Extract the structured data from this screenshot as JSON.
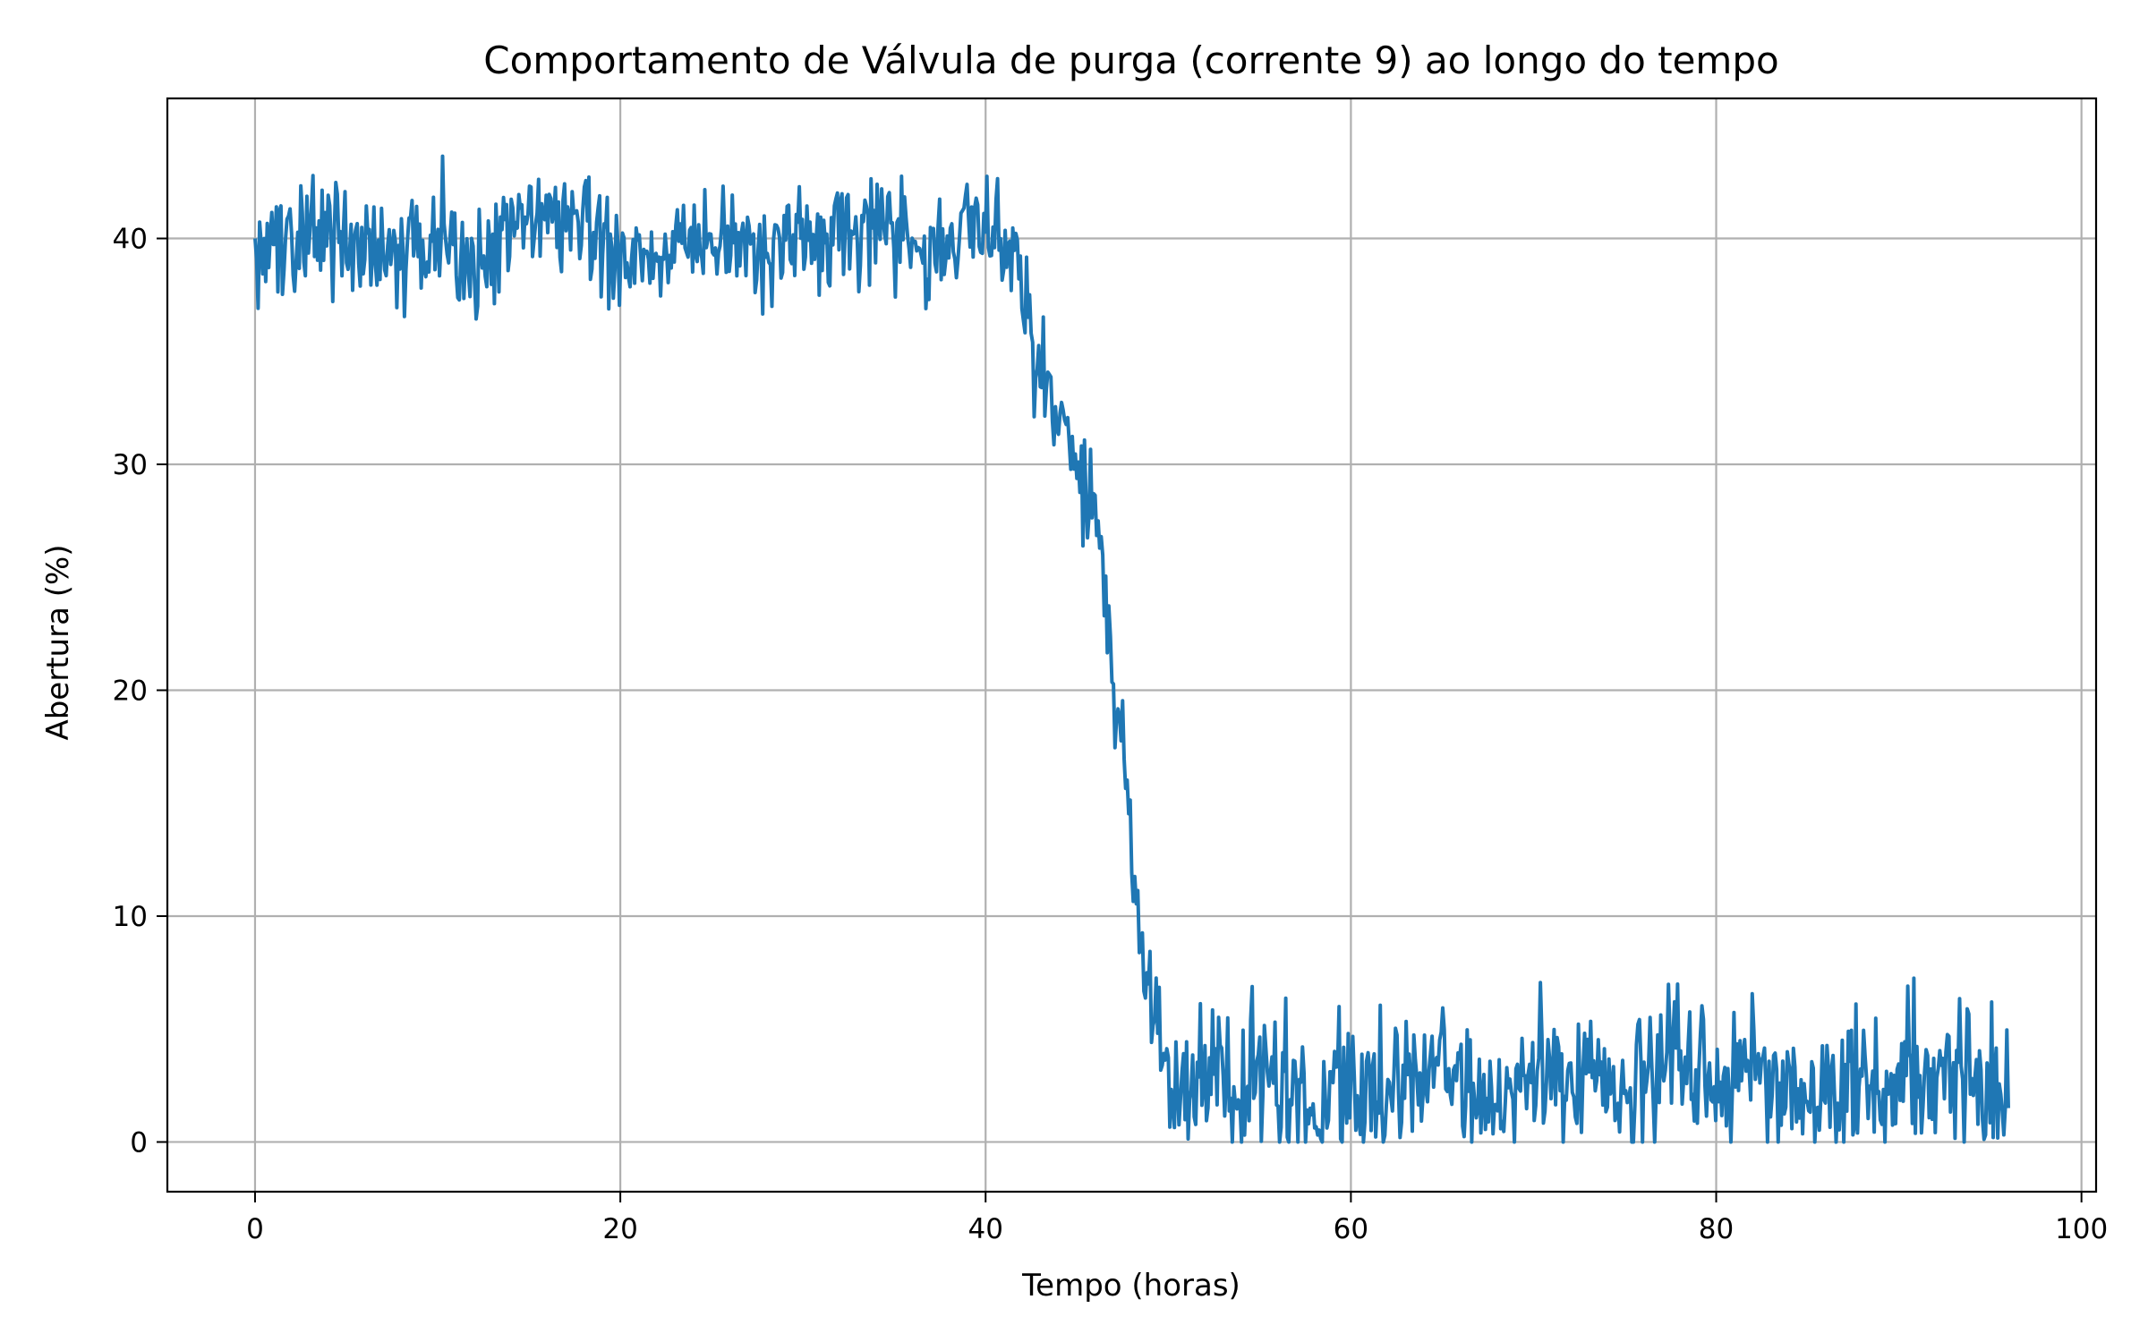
{
  "chart_data": {
    "type": "line",
    "title": "Comportamento de Válvula de purga (corrente 9) ao longo do tempo",
    "xlabel": "Tempo (horas)",
    "ylabel": "Abertura (%)",
    "xlim": [
      -4.8,
      100.8
    ],
    "ylim": [
      -2.2,
      46.2
    ],
    "xticks": [
      0,
      20,
      40,
      60,
      80,
      100
    ],
    "yticks": [
      0,
      10,
      20,
      30,
      40
    ],
    "xtick_labels": [
      "0",
      "20",
      "40",
      "60",
      "80",
      "100"
    ],
    "ytick_labels": [
      "0",
      "10",
      "20",
      "30",
      "40"
    ],
    "grid": true,
    "legend": "none",
    "series": [
      {
        "color": "#1f77b4",
        "x": [
          0,
          2,
          4,
          6,
          8,
          10,
          12,
          14,
          16,
          18,
          20,
          22,
          24,
          26,
          28,
          30,
          32,
          34,
          36,
          37,
          38,
          39,
          40,
          41,
          42,
          43,
          44,
          45,
          46,
          46.5,
          47,
          47.5,
          48,
          48.5,
          49,
          50,
          51,
          52,
          54,
          56,
          58,
          60,
          62,
          64,
          66,
          68,
          70,
          72,
          74,
          76,
          78,
          80,
          82,
          84,
          86,
          88,
          90,
          92,
          94,
          95,
          96
        ],
        "y": [
          40,
          40.5,
          40,
          39.5,
          39,
          40.5,
          39,
          40.5,
          41,
          40.5,
          39,
          39,
          40,
          40.5,
          39.5,
          40,
          40.5,
          40.5,
          40,
          40.2,
          39.5,
          40.5,
          40,
          40.5,
          37.5,
          34,
          32,
          30,
          28,
          25,
          20,
          17,
          13,
          10,
          6,
          3,
          1.5,
          2.5,
          2.5,
          2,
          2,
          2.2,
          2.5,
          3,
          2.5,
          2.5,
          3,
          2.5,
          2.5,
          3,
          2.5,
          2.5,
          2.8,
          2.8,
          2.5,
          2.5,
          2.5,
          2.5,
          2.8,
          2.5,
          1.5
        ],
        "noise_amplitude": [
          2,
          2,
          2,
          2,
          2,
          2,
          2,
          2,
          2,
          2,
          2,
          2,
          2,
          2,
          2,
          2,
          2,
          2,
          2,
          2,
          2,
          2,
          2,
          2,
          2,
          2,
          2,
          2,
          2,
          2,
          2,
          2,
          2,
          2,
          2.5,
          2.8,
          2.8,
          2.8,
          2.8,
          2.8,
          2.8,
          2.8,
          2.8,
          2.8,
          2.8,
          2.8,
          2.8,
          2.8,
          2.8,
          2.8,
          2.8,
          2.8,
          2.8,
          2.8,
          2.8,
          2.8,
          2.8,
          2.8,
          2.8,
          2.8,
          2.5
        ]
      }
    ]
  }
}
